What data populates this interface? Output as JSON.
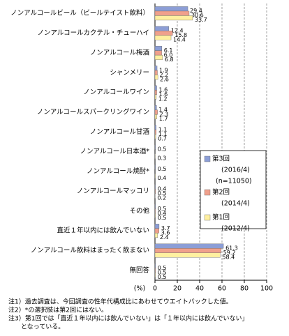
{
  "chart_data": {
    "type": "hbar",
    "categories": [
      "ノンアルコールビール（ビールテイスト飲料）",
      "ノンアルコールカクテル・チューハイ",
      "ノンアルコール梅酒",
      "シャンメリー",
      "ノンアルコールワイン",
      "ノンアルコールスパークリングワイン",
      "ノンアルコール甘酒",
      "ノンアルコール日本酒*",
      "ノンアルコール焼酎*",
      "ノンアルコールマッコリ",
      "その他",
      "直近１年以内には飲んでいない",
      "ノンアルコール飲料はまったく飲まない",
      "無回答"
    ],
    "series": [
      {
        "name": "第3回",
        "period": "(2016/4)",
        "sample": "(n=11050)",
        "color": "#8c9ed6",
        "values": [
          29.4,
          12.4,
          6.1,
          1.9,
          1.6,
          1.4,
          1.1,
          0.5,
          0.5,
          0.4,
          0.5,
          3.7,
          61.3,
          0.5
        ],
        "value_labels": [
          "29.4",
          "12.4",
          "6.1",
          "1.9",
          "1.6",
          "1.4",
          "1.1",
          "0.5",
          "0.5",
          "0.4",
          "0.5",
          "3.7",
          "61.3",
          "0.5"
        ]
      },
      {
        "name": "第2回",
        "period": "(2014/4)",
        "color": "#f0a08c",
        "values": [
          30.6,
          15.8,
          6.0,
          2.2,
          1.6,
          2.3,
          1.1,
          null,
          null,
          0.5,
          0.4,
          3.6,
          59.2,
          0.5
        ],
        "value_labels": [
          "30.6",
          "15.8",
          "6.0",
          "2.2",
          "1.6",
          "2.3",
          "1.1",
          null,
          null,
          "0.5",
          "0.4",
          "3.6",
          "59.2",
          "0.5"
        ]
      },
      {
        "name": "第1回",
        "period": "(2012/4)",
        "color": "#fff0a0",
        "values": [
          33.7,
          14.4,
          6.8,
          2.6,
          1.2,
          1.7,
          0.7,
          0.3,
          0.4,
          0.2,
          0.5,
          2.4,
          58.4,
          0.5
        ],
        "value_labels": [
          "33.7",
          "14.4",
          "6.8",
          "2.6",
          "1.2",
          "1.7",
          "0.7",
          "0.3",
          "0.4",
          "0.2",
          "0.5",
          "2.4",
          "58.4",
          "0.5"
        ]
      }
    ],
    "x_unit": "(%)",
    "xlim": [
      0,
      100
    ],
    "xticks": [
      0,
      20,
      40,
      60,
      80,
      100
    ],
    "grid": true,
    "notes": [
      "注1）過去調査は、今回調査の性年代構成比にあわせてウエイトバックした値。",
      "注2）*の選択肢は第2回にはない。",
      "注3）第1回では「直近１年以内には飲んでいない」は「１年以内には飲んでいない」",
      "　　となっている。"
    ]
  }
}
